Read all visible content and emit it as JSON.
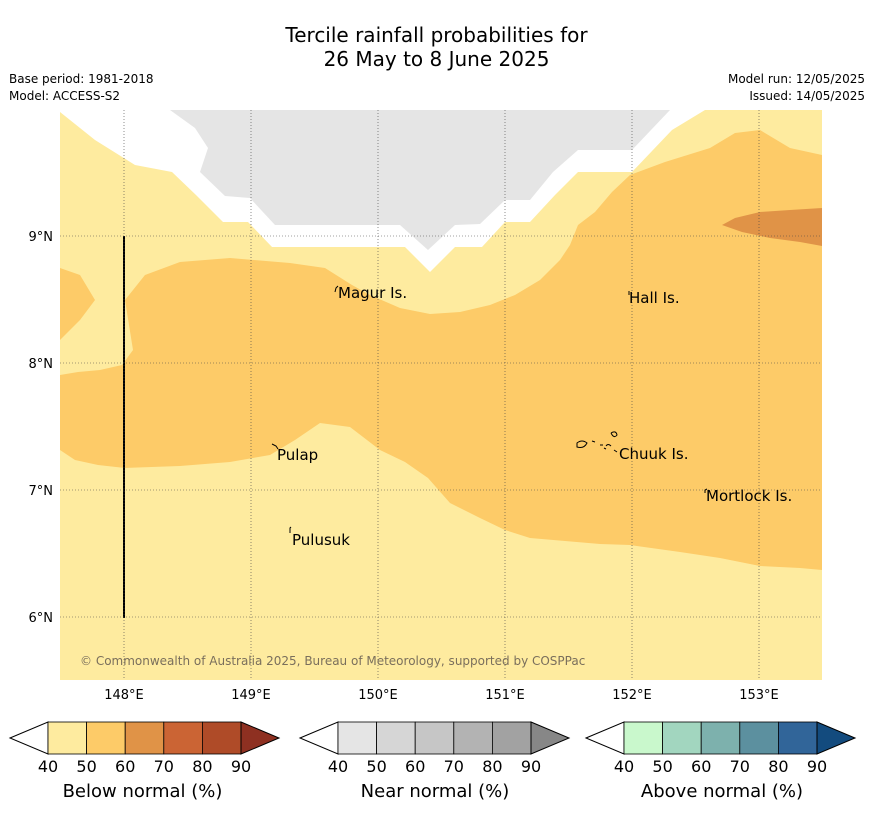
{
  "title": {
    "line1": "Tercile rainfall probabilities for",
    "line2": "26 May to 8 June 2025"
  },
  "meta": {
    "base_period": "Base period: 1981-2018",
    "model": "Model: ACCESS-S2",
    "model_run": "Model run: 12/05/2025",
    "issued": "Issued: 14/05/2025"
  },
  "map": {
    "copyright": "© Commonwealth of Australia 2025, Bureau of Meteorology, supported by COSPPac",
    "lat_ticks": [
      "9°N",
      "8°N",
      "7°N",
      "6°N"
    ],
    "lon_ticks": [
      "148°E",
      "149°E",
      "150°E",
      "151°E",
      "152°E",
      "153°E"
    ],
    "places": [
      "Magur Is.",
      "Hall Is.",
      "Pulap",
      "Chuuk Is.",
      "Mortlock Is.",
      "Pulusuk"
    ],
    "colors": {
      "below_50": "#feeb9f",
      "below_60": "#fdcb68",
      "below_70": "#e09347",
      "near_normal": "#e5e5e5"
    }
  },
  "colorbars": [
    {
      "label": "Below normal (%)",
      "ticks": [
        "40",
        "50",
        "60",
        "70",
        "80",
        "90"
      ],
      "colors": [
        "#feeb9f",
        "#fdcb68",
        "#e09347",
        "#cb6434",
        "#af4b28",
        "#8e3021"
      ]
    },
    {
      "label": "Near normal (%)",
      "ticks": [
        "40",
        "50",
        "60",
        "70",
        "80",
        "90"
      ],
      "colors": [
        "#e5e5e5",
        "#d6d6d6",
        "#c6c6c6",
        "#b3b3b3",
        "#a2a2a2",
        "#878787"
      ]
    },
    {
      "label": "Above normal (%)",
      "ticks": [
        "40",
        "50",
        "60",
        "70",
        "80",
        "90"
      ],
      "colors": [
        "#c9f8cc",
        "#a2d6bf",
        "#7db1ad",
        "#5c909f",
        "#316599",
        "#134b7e"
      ]
    }
  ]
}
